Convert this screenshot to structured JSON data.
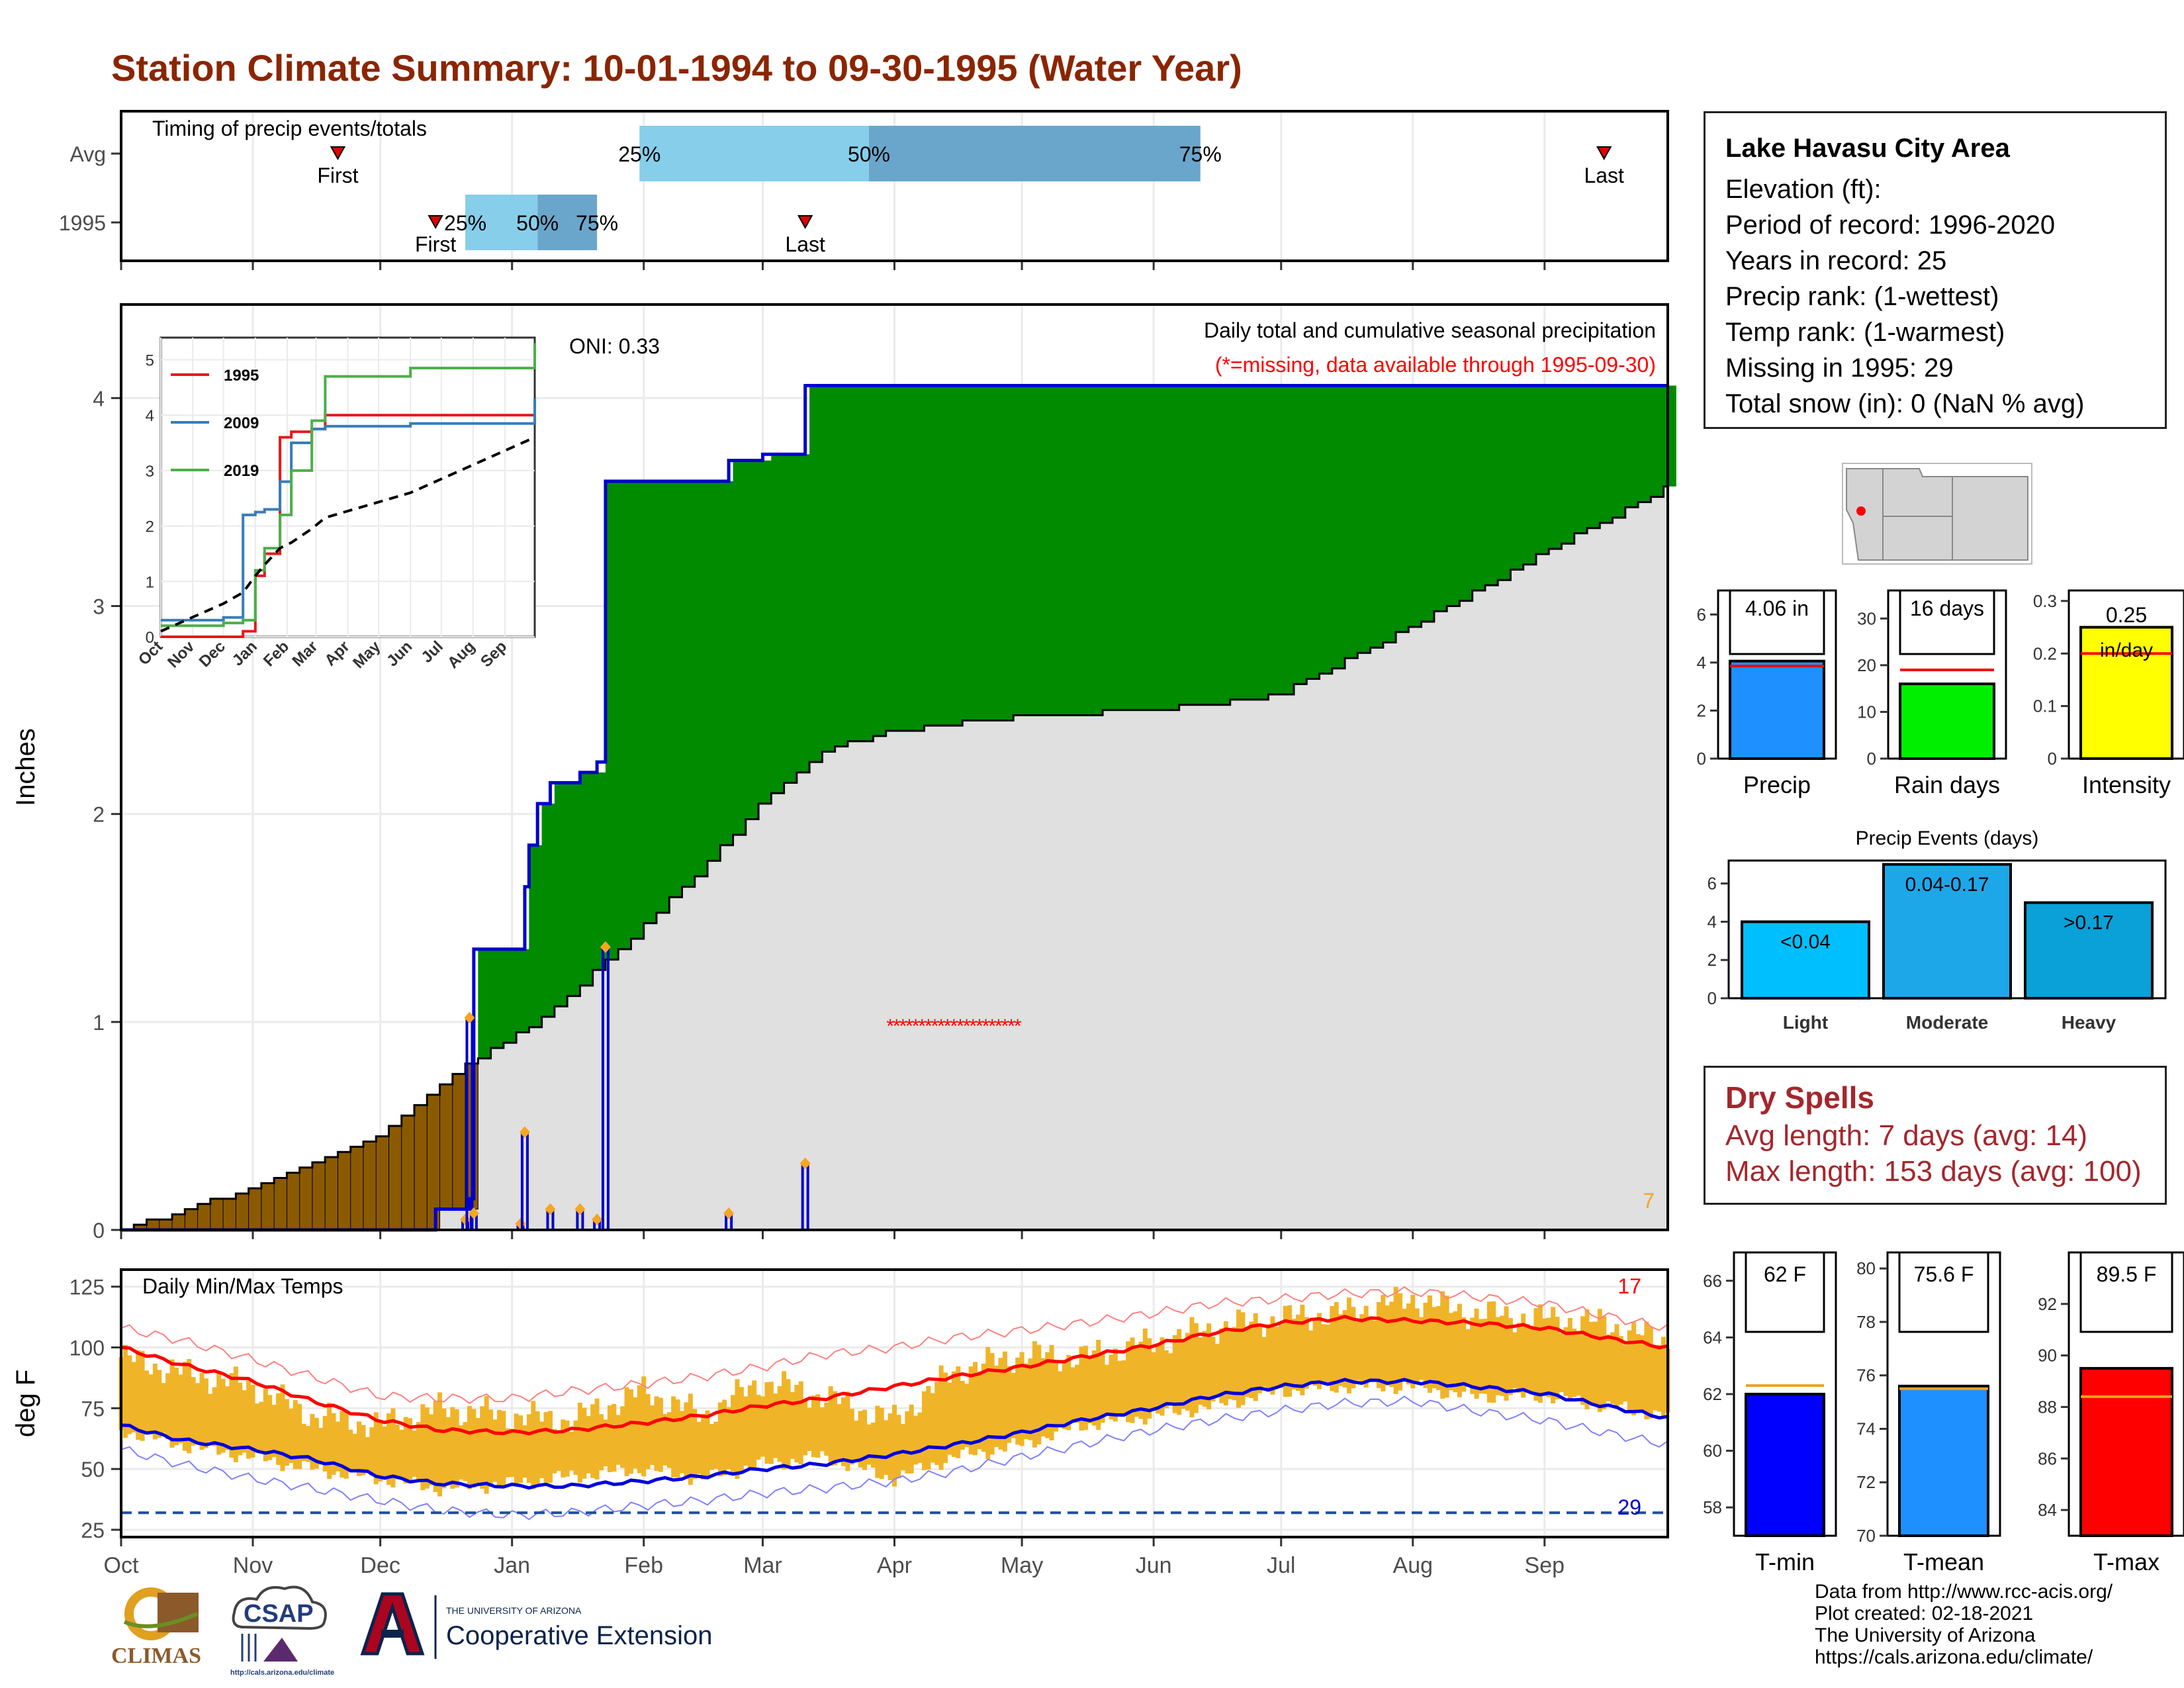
{
  "title": "Station Climate Summary: 10-01-1994 to 09-30-1995 (Water Year)",
  "timing": {
    "label": "Timing of precip events/totals",
    "rows": [
      "Avg",
      "1995"
    ],
    "avg": {
      "first": "First",
      "last": "Last",
      "p25": "25%",
      "p50": "50%",
      "p75": "75%",
      "first_date": "1994-11-21",
      "last_date": "1995-09-15",
      "p25_date": "1995-01-31",
      "p50_date": "1995-03-26",
      "p75_date": "1995-06-12"
    },
    "y1995": {
      "first": "First",
      "last": "Last",
      "p25": "25%",
      "p50": "50%",
      "p75": "75%",
      "first_date": "1994-12-14",
      "last_date": "1995-03-11",
      "p25_date": "1994-12-21",
      "p50_date": "1995-01-07",
      "p75_date": "1995-01-21"
    },
    "colors": {
      "q1": "#87ceeb",
      "q2": "#6aa6cc"
    }
  },
  "precip_panel": {
    "ylabel": "Inches",
    "oni": "ONI: 0.33",
    "subtitle": "Daily total and cumulative seasonal precipitation",
    "missing_note": "(*=missing, data available through 1995-09-30)",
    "corner_count": "7",
    "yticks": [
      0,
      1,
      2,
      3,
      4
    ]
  },
  "inset": {
    "yticks": [
      0,
      1,
      2,
      3,
      4,
      5
    ],
    "xticks": [
      "Oct",
      "Nov",
      "Dec",
      "Jan",
      "Feb",
      "Mar",
      "Apr",
      "May",
      "Jun",
      "Jul",
      "Aug",
      "Sep"
    ],
    "legend": [
      {
        "name": "1995",
        "color": "#e41a1c"
      },
      {
        "name": "2009",
        "color": "#377eb8"
      },
      {
        "name": "2019",
        "color": "#4daf4a"
      }
    ]
  },
  "temp_panel": {
    "label": "Daily Min/Max Temps",
    "ylabel": "deg F",
    "count_top": "17",
    "count_bottom": "29",
    "yticks": [
      25,
      50,
      75,
      100,
      125
    ],
    "freeze_line": 32
  },
  "months": [
    "Oct",
    "Nov",
    "Dec",
    "Jan",
    "Feb",
    "Mar",
    "Apr",
    "May",
    "Jun",
    "Jul",
    "Aug",
    "Sep"
  ],
  "info": {
    "heading": "Lake Havasu City Area",
    "lines": [
      "Elevation (ft):",
      "Period of record: 1996-2020",
      "Years in record: 25",
      "Precip rank:  (1-wettest)",
      "Temp rank:  (1-warmest)",
      "Missing in 1995: 29",
      "Total snow (in): 0 (NaN % avg)"
    ]
  },
  "dry_spells": {
    "heading": "Dry Spells",
    "avg": "Avg length: 7 days (avg: 14)",
    "max": "Max length: 153 days (avg: 100)"
  },
  "credits": [
    "Data from http://www.rcc-acis.org/",
    "Plot created: 02-18-2021",
    "The University of Arizona",
    "https://cals.arizona.edu/climate/"
  ],
  "logos": {
    "climas": "CLIMAS",
    "csap": "CSAP",
    "csap_url": "http://cals.arizona.edu/climate",
    "ua_top": "THE UNIVERSITY OF ARIZONA",
    "ua_bottom": "Cooperative Extension"
  },
  "chart_data": [
    {
      "type": "bar",
      "name_id": "precip",
      "categories": [
        "Precip"
      ],
      "values": [
        4.06
      ],
      "avg": 3.85,
      "label": "4.06 in",
      "ylim": [
        0,
        7
      ],
      "yticks": [
        0,
        2,
        4,
        6
      ],
      "color": "#1e90ff"
    },
    {
      "type": "bar",
      "name_id": "rain-days",
      "categories": [
        "Rain days"
      ],
      "values": [
        16
      ],
      "avg": 19,
      "label": "16 days",
      "ylim": [
        0,
        36
      ],
      "yticks": [
        0,
        10,
        20,
        30
      ],
      "color": "#00ee00"
    },
    {
      "type": "bar",
      "name_id": "intensity",
      "categories": [
        "Intensity"
      ],
      "values": [
        0.25
      ],
      "avg": 0.2,
      "label": "0.25",
      "label2": "in/day",
      "ylim": [
        0,
        0.32
      ],
      "yticks": [
        0.0,
        0.1,
        0.2,
        0.3
      ],
      "color": "#ffff00"
    },
    {
      "type": "bar",
      "name_id": "precip-events",
      "title": "Precip Events (days)",
      "categories": [
        "Light",
        "Moderate",
        "Heavy"
      ],
      "values": [
        4,
        7,
        5
      ],
      "labels": [
        "<0.04",
        "0.04-0.17",
        ">0.17"
      ],
      "colors": [
        "#00bfff",
        "#1ea7e8",
        "#0aa0d8"
      ],
      "ylim": [
        0,
        7.2
      ],
      "yticks": [
        0,
        2,
        4,
        6
      ]
    },
    {
      "type": "bar",
      "name_id": "tmin",
      "categories": [
        "T-min"
      ],
      "values": [
        62
      ],
      "avg": 62.3,
      "label": "62 F",
      "ylim": [
        57,
        67
      ],
      "yticks": [
        58,
        60,
        62,
        64,
        66
      ],
      "color": "#0000ff"
    },
    {
      "type": "bar",
      "name_id": "tmean",
      "categories": [
        "T-mean"
      ],
      "values": [
        75.6
      ],
      "avg": 75.5,
      "label": "75.6 F",
      "ylim": [
        70,
        80.6
      ],
      "yticks": [
        70,
        72,
        74,
        76,
        78,
        80
      ],
      "color": "#1e90ff"
    },
    {
      "type": "bar",
      "name_id": "tmax",
      "categories": [
        "T-max"
      ],
      "values": [
        89.5
      ],
      "avg": 88.4,
      "label": "89.5 F",
      "ylim": [
        83,
        94
      ],
      "yticks": [
        84,
        86,
        88,
        90,
        92
      ],
      "color": "#ff0000"
    },
    {
      "type": "area",
      "name_id": "cumulative-precip",
      "title": "Daily total and cumulative seasonal precipitation",
      "x": [
        "1994-10-01",
        "1994-12-14",
        "1994-12-21",
        "1994-12-22",
        "1994-12-23",
        "1995-01-03",
        "1995-01-04",
        "1995-01-05",
        "1995-01-07",
        "1995-01-10",
        "1995-01-17",
        "1995-01-21",
        "1995-01-23",
        "1995-01-24",
        "1995-02-21",
        "1995-03-01",
        "1995-03-08",
        "1995-03-11",
        "1995-09-30"
      ],
      "series": [
        {
          "values": [
            0.0,
            0.1,
            0.1,
            0.15,
            1.35,
            1.35,
            1.65,
            1.85,
            2.05,
            2.15,
            2.2,
            2.25,
            3.6,
            3.6,
            3.7,
            3.73,
            3.73,
            4.06,
            4.06
          ]
        }
      ],
      "average_cumulative": {
        "x": [
          "1994-10-01",
          "1994-10-31",
          "1994-11-30",
          "1994-12-20",
          "1995-01-10",
          "1995-01-31",
          "1995-02-15",
          "1995-02-28",
          "1995-03-15",
          "1995-03-31",
          "1995-04-30",
          "1995-05-31",
          "1995-06-30",
          "1995-07-31",
          "1995-08-31",
          "1995-09-30"
        ],
        "values": [
          0.0,
          0.2,
          0.45,
          0.78,
          1.05,
          1.45,
          1.75,
          2.05,
          2.3,
          2.4,
          2.47,
          2.5,
          2.57,
          2.9,
          3.25,
          3.58
        ]
      },
      "daily_totals": {
        "x": [
          "1994-12-21",
          "1994-12-22",
          "1994-12-23",
          "1995-01-03",
          "1995-01-04",
          "1995-01-10",
          "1995-01-17",
          "1995-01-21",
          "1995-01-23",
          "1995-02-21",
          "1995-03-11"
        ],
        "values": [
          0.05,
          1.02,
          0.08,
          0.03,
          0.47,
          0.1,
          0.1,
          0.05,
          1.36,
          0.08,
          0.32
        ]
      },
      "missing_x": [
        "1995-03-31",
        "1995-04-30"
      ],
      "ylim": [
        0,
        4.45
      ]
    },
    {
      "type": "line",
      "name_id": "daily-temps",
      "title": "Daily Min/Max Temps",
      "x": [
        "1994-10-01",
        "1994-10-15",
        "1994-11-01",
        "1994-11-15",
        "1994-12-01",
        "1994-12-15",
        "1995-01-01",
        "1995-01-15",
        "1995-02-01",
        "1995-02-15",
        "1995-03-01",
        "1995-03-15",
        "1995-04-01",
        "1995-04-15",
        "1995-05-01",
        "1995-05-15",
        "1995-06-01",
        "1995-06-15",
        "1995-07-01",
        "1995-07-15",
        "1995-08-01",
        "1995-08-15",
        "1995-09-01",
        "1995-09-15",
        "1995-09-30"
      ],
      "series": [
        {
          "name_id": "avg-max",
          "values": [
            100,
            93,
            86,
            78,
            70,
            66,
            65,
            66,
            69,
            72,
            76,
            79,
            84,
            88,
            92,
            96,
            101,
            106,
            110,
            112,
            111,
            110,
            108,
            104,
            100
          ]
        },
        {
          "name_id": "avg-min",
          "values": [
            68,
            62,
            58,
            54,
            47,
            44,
            43,
            43,
            45,
            47,
            50,
            52,
            56,
            60,
            65,
            70,
            75,
            80,
            84,
            86,
            86,
            84,
            81,
            76,
            71
          ]
        },
        {
          "name_id": "record-high",
          "values": [
            108,
            103,
            95,
            88,
            80,
            79,
            79,
            82,
            85,
            88,
            92,
            97,
            100,
            104,
            107,
            110,
            114,
            118,
            120,
            122,
            123,
            121,
            118,
            113,
            108
          ]
        },
        {
          "name_id": "record-low",
          "values": [
            58,
            52,
            46,
            42,
            37,
            33,
            31,
            32,
            35,
            37,
            40,
            42,
            45,
            49,
            55,
            60,
            66,
            70,
            74,
            77,
            78,
            74,
            70,
            65,
            60
          ]
        },
        {
          "name_id": "obs-max",
          "values": [
            96,
            90,
            84,
            72,
            68,
            75,
            72,
            70,
            82,
            72,
            86,
            80,
            70,
            90,
            97,
            96,
            102,
            108,
            112,
            114,
            120,
            114,
            112,
            110,
            102
          ]
        },
        {
          "name_id": "obs-min",
          "values": [
            66,
            60,
            55,
            50,
            46,
            42,
            44,
            47,
            50,
            46,
            52,
            55,
            46,
            55,
            60,
            68,
            72,
            76,
            82,
            84,
            84,
            80,
            80,
            76,
            72
          ]
        }
      ],
      "ylim": [
        22,
        132
      ]
    },
    {
      "type": "line",
      "name_id": "inset-cumulative",
      "x": [
        "1994-10-01",
        "1994-12-01",
        "1994-12-20",
        "1995-01-01",
        "1995-01-10",
        "1995-01-25",
        "1995-02-05",
        "1995-02-25",
        "1995-03-10",
        "1995-06-01",
        "1995-09-30"
      ],
      "series": [
        {
          "name": "1995",
          "values": [
            0.0,
            0.0,
            0.1,
            1.1,
            1.5,
            3.6,
            3.7,
            3.75,
            4.0,
            4.0,
            4.0
          ]
        },
        {
          "name": "2009",
          "values": [
            0.3,
            0.35,
            2.2,
            2.25,
            2.3,
            2.8,
            3.5,
            3.75,
            3.8,
            3.85,
            4.3
          ]
        },
        {
          "name": "2019",
          "values": [
            0.2,
            0.25,
            0.3,
            1.2,
            1.6,
            2.2,
            3.0,
            3.9,
            4.7,
            4.85,
            5.3
          ]
        },
        {
          "name_id": "average",
          "values": [
            0.1,
            0.6,
            0.8,
            1.1,
            1.3,
            1.6,
            1.7,
            1.95,
            2.15,
            2.6,
            3.6
          ]
        }
      ],
      "ylim": [
        0,
        5.4
      ]
    }
  ]
}
